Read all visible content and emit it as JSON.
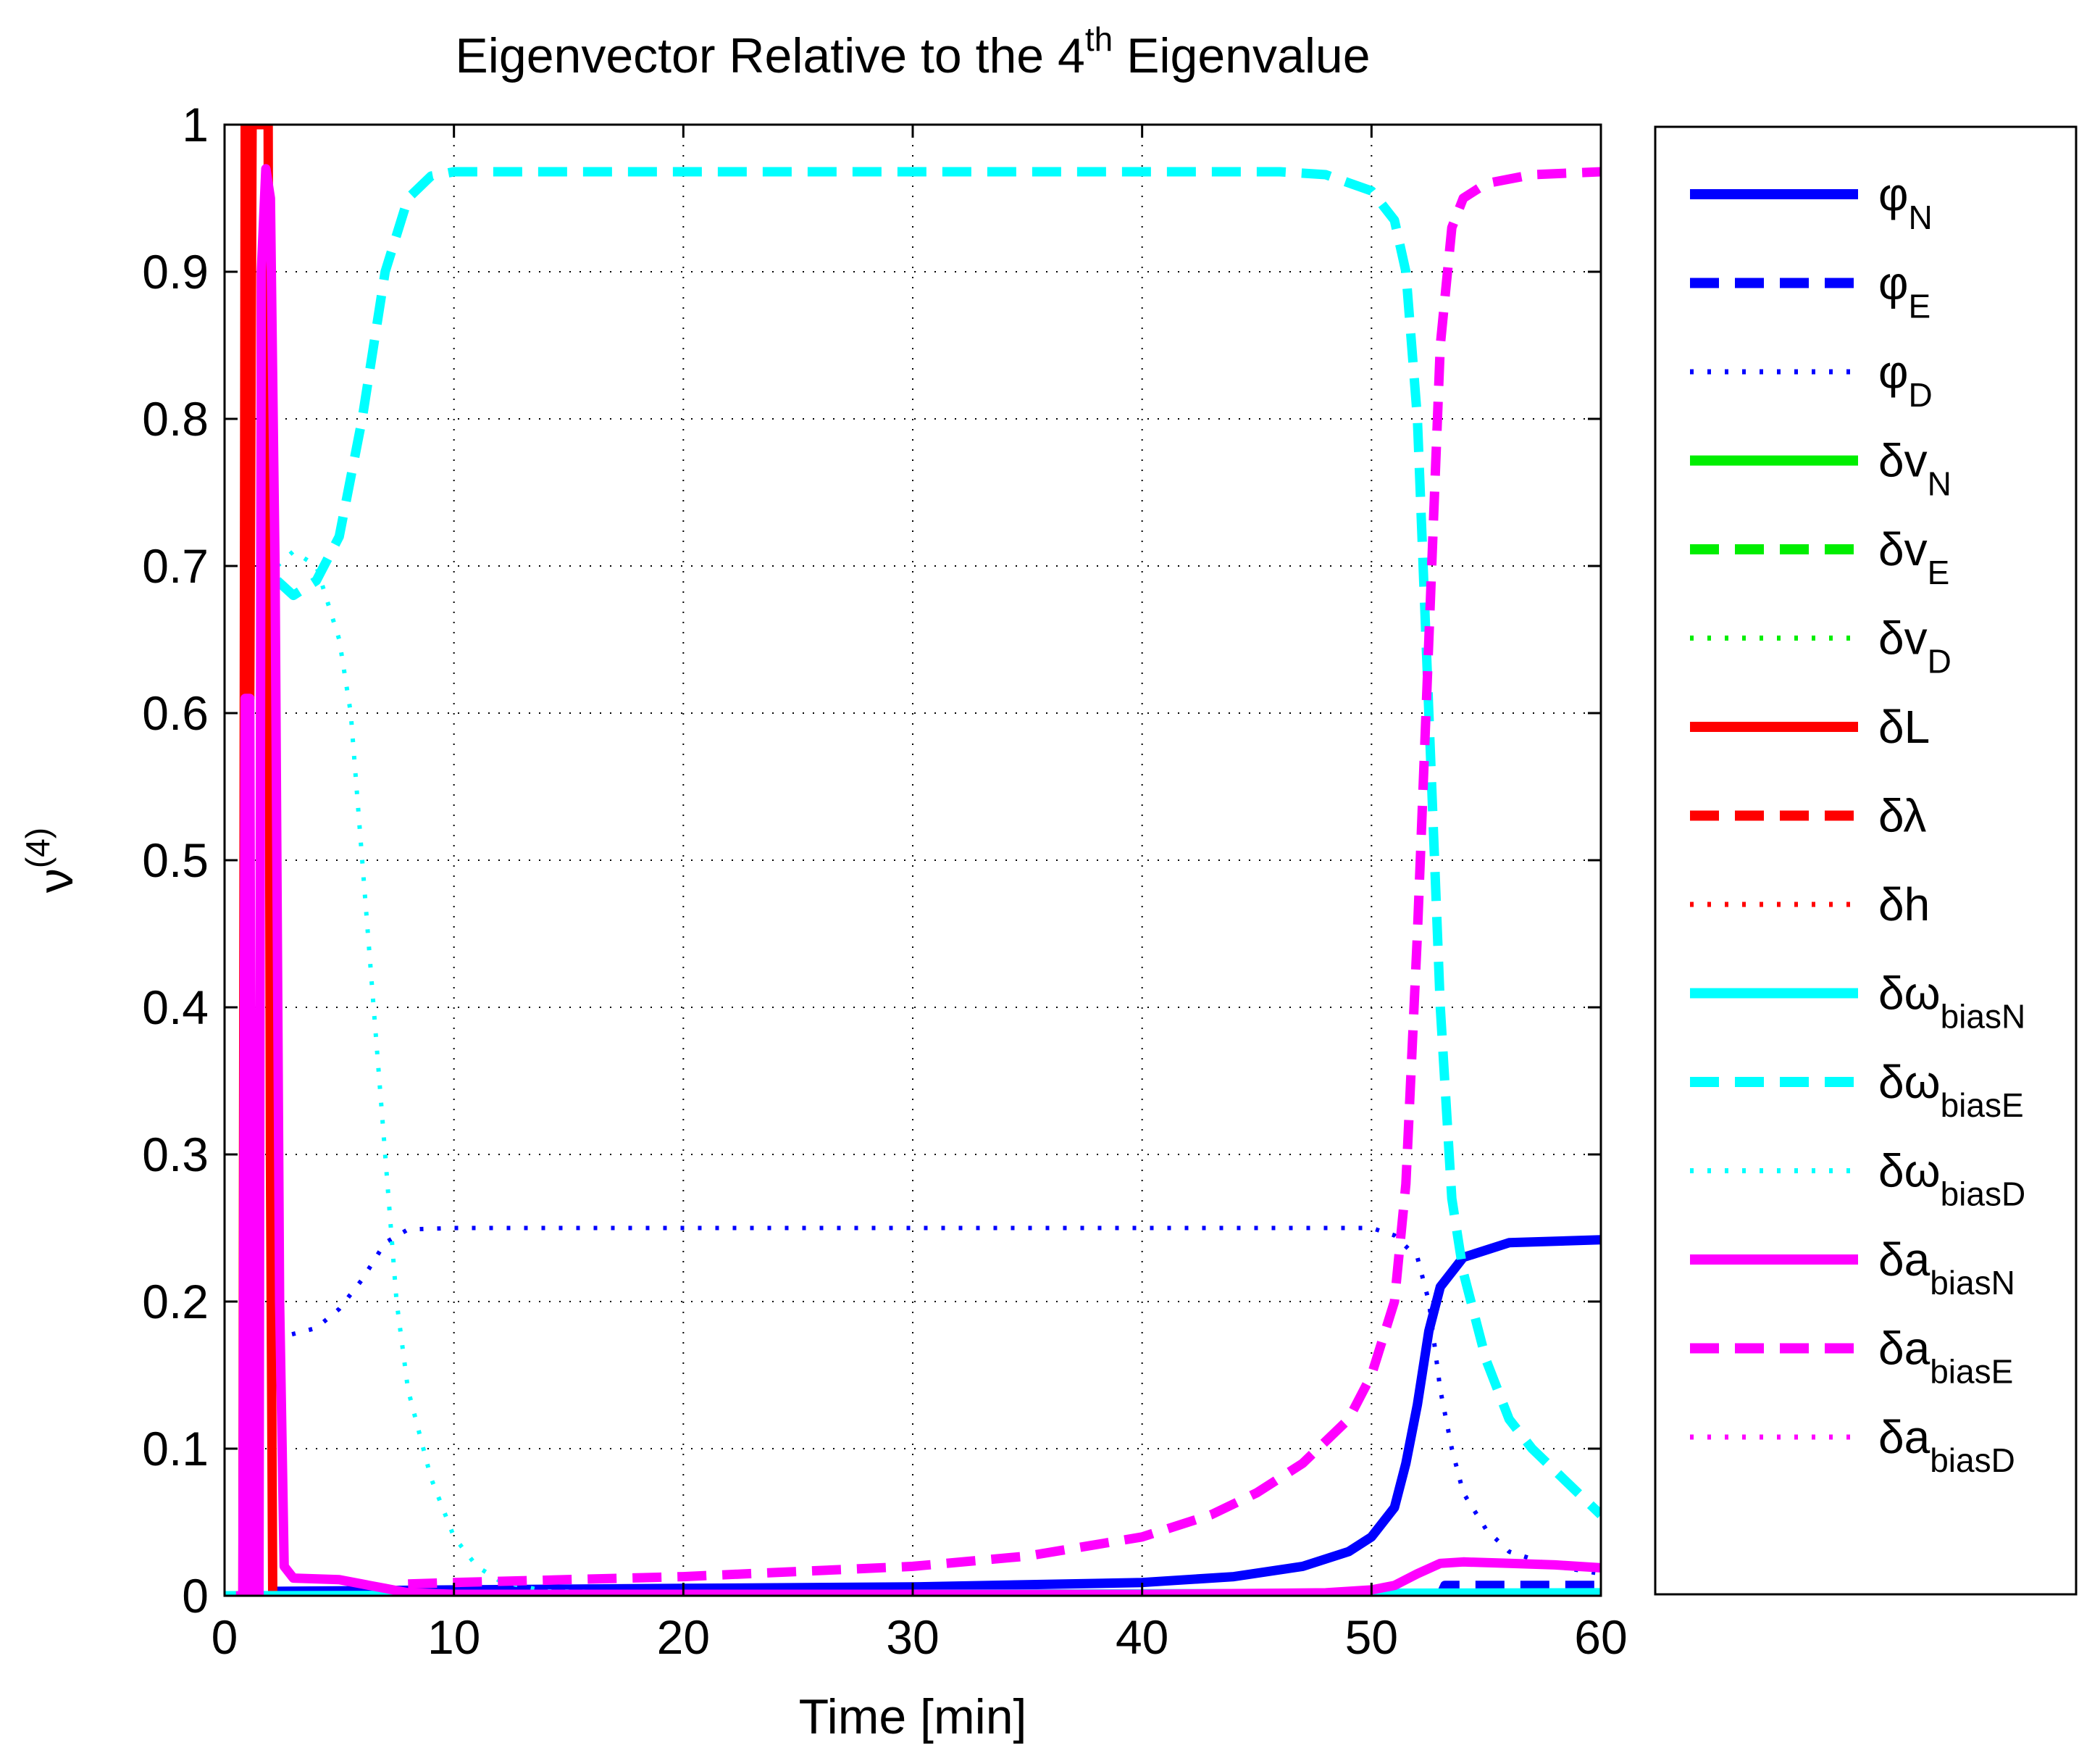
{
  "chart_data": {
    "type": "line",
    "title": {
      "main": "Eigenvector Relative to the 4",
      "sup": "th",
      "tail": " Eigenvalue"
    },
    "xlabel": "Time [min]",
    "ylabel": {
      "base": "ν",
      "sup": "(4)"
    },
    "xlim": [
      0,
      60
    ],
    "ylim": [
      0,
      1
    ],
    "xticks": [
      0,
      10,
      20,
      30,
      40,
      50,
      60
    ],
    "yticks": [
      0,
      0.1,
      0.2,
      0.3,
      0.4,
      0.5,
      0.6,
      0.7,
      0.8,
      0.9,
      1
    ],
    "xtick_labels": [
      "0",
      "10",
      "20",
      "30",
      "40",
      "50",
      "60"
    ],
    "ytick_labels": [
      "0",
      "0.1",
      "0.2",
      "0.3",
      "0.4",
      "0.5",
      "0.6",
      "0.7",
      "0.8",
      "0.9",
      "1"
    ],
    "grid": true,
    "legend_position": "outside-right",
    "series": [
      {
        "name": "φN",
        "label": {
          "base": "φ",
          "sub": "N"
        },
        "color": "#0000ff",
        "style": "solid",
        "points": [
          [
            0,
            0
          ],
          [
            2,
            0
          ],
          [
            2.2,
            0.003
          ],
          [
            10,
            0.004
          ],
          [
            20,
            0.005
          ],
          [
            30,
            0.006
          ],
          [
            40,
            0.009
          ],
          [
            44,
            0.013
          ],
          [
            47,
            0.02
          ],
          [
            49,
            0.03
          ],
          [
            50,
            0.04
          ],
          [
            51,
            0.06
          ],
          [
            51.5,
            0.09
          ],
          [
            52,
            0.13
          ],
          [
            52.5,
            0.18
          ],
          [
            53,
            0.21
          ],
          [
            54,
            0.23
          ],
          [
            56,
            0.24
          ],
          [
            60,
            0.242
          ]
        ]
      },
      {
        "name": "φE",
        "label": {
          "base": "φ",
          "sub": "E"
        },
        "color": "#0000ff",
        "style": "dashed",
        "points": [
          [
            0,
            0
          ],
          [
            53,
            0
          ],
          [
            53.2,
            0.007
          ],
          [
            60,
            0.007
          ]
        ]
      },
      {
        "name": "φD",
        "label": {
          "base": "φ",
          "sub": "D"
        },
        "color": "#0000ff",
        "style": "dotted",
        "points": [
          [
            2.2,
            0.175
          ],
          [
            3,
            0.178
          ],
          [
            4,
            0.182
          ],
          [
            5,
            0.195
          ],
          [
            6,
            0.215
          ],
          [
            7,
            0.24
          ],
          [
            8,
            0.249
          ],
          [
            10,
            0.25
          ],
          [
            30,
            0.25
          ],
          [
            48,
            0.25
          ],
          [
            50,
            0.25
          ],
          [
            51,
            0.245
          ],
          [
            52,
            0.23
          ],
          [
            52.5,
            0.2
          ],
          [
            53,
            0.14
          ],
          [
            53.5,
            0.1
          ],
          [
            54,
            0.07
          ],
          [
            55,
            0.045
          ],
          [
            56,
            0.03
          ],
          [
            58,
            0.02
          ],
          [
            60,
            0.015
          ]
        ]
      },
      {
        "name": "δvN",
        "label": {
          "base": "δv",
          "sub": "N"
        },
        "color": "#00ee00",
        "style": "solid",
        "points": []
      },
      {
        "name": "δvE",
        "label": {
          "base": "δv",
          "sub": "E"
        },
        "color": "#00ee00",
        "style": "dashed",
        "points": []
      },
      {
        "name": "δvD",
        "label": {
          "base": "δv",
          "sub": "D"
        },
        "color": "#00ee00",
        "style": "dotted",
        "points": []
      },
      {
        "name": "δL",
        "label": {
          "base": "δL",
          "sub": ""
        },
        "color": "#ff0000",
        "style": "solid",
        "points": [
          [
            0.8,
            0
          ],
          [
            0.9,
            1
          ],
          [
            1.05,
            1
          ],
          [
            1.1,
            0.61
          ],
          [
            1.2,
            1
          ],
          [
            1.9,
            1
          ],
          [
            2,
            0.3
          ],
          [
            2.1,
            0
          ]
        ]
      },
      {
        "name": "δλ",
        "label": {
          "base": "δλ",
          "sub": ""
        },
        "color": "#ff0000",
        "style": "dashed",
        "points": []
      },
      {
        "name": "δh",
        "label": {
          "base": "δh",
          "sub": ""
        },
        "color": "#ff0000",
        "style": "dotted",
        "points": []
      },
      {
        "name": "δωbiasN",
        "label": {
          "base": "δω",
          "sub": "biasN"
        },
        "color": "#00ffff",
        "style": "solid",
        "points": [
          [
            0,
            0
          ],
          [
            60,
            0.002
          ]
        ]
      },
      {
        "name": "δωbiasE",
        "label": {
          "base": "δω",
          "sub": "biasE"
        },
        "color": "#00ffff",
        "style": "dashed",
        "points": [
          [
            2.3,
            0.69
          ],
          [
            3,
            0.68
          ],
          [
            4,
            0.69
          ],
          [
            5,
            0.72
          ],
          [
            6,
            0.8
          ],
          [
            7,
            0.9
          ],
          [
            8,
            0.95
          ],
          [
            9,
            0.965
          ],
          [
            10,
            0.968
          ],
          [
            20,
            0.968
          ],
          [
            30,
            0.968
          ],
          [
            40,
            0.968
          ],
          [
            46,
            0.968
          ],
          [
            48,
            0.966
          ],
          [
            50,
            0.955
          ],
          [
            51,
            0.935
          ],
          [
            51.5,
            0.9
          ],
          [
            52,
            0.8
          ],
          [
            52.5,
            0.6
          ],
          [
            53,
            0.4
          ],
          [
            53.5,
            0.27
          ],
          [
            54,
            0.22
          ],
          [
            55,
            0.16
          ],
          [
            56,
            0.12
          ],
          [
            57,
            0.1
          ],
          [
            58,
            0.085
          ],
          [
            59,
            0.07
          ],
          [
            60,
            0.055
          ]
        ]
      },
      {
        "name": "δωbiasD",
        "label": {
          "base": "δω",
          "sub": "biasD"
        },
        "color": "#00ffff",
        "style": "dotted",
        "points": [
          [
            2.3,
            0.7
          ],
          [
            3,
            0.71
          ],
          [
            4,
            0.7
          ],
          [
            5,
            0.65
          ],
          [
            5.5,
            0.6
          ],
          [
            6,
            0.5
          ],
          [
            6.5,
            0.4
          ],
          [
            7,
            0.3
          ],
          [
            7.5,
            0.2
          ],
          [
            8,
            0.14
          ],
          [
            9,
            0.08
          ],
          [
            10,
            0.04
          ],
          [
            11,
            0.02
          ],
          [
            12,
            0.01
          ],
          [
            14,
            0.003
          ],
          [
            20,
            0.002
          ],
          [
            60,
            0.002
          ]
        ]
      },
      {
        "name": "δabiasN",
        "label": {
          "base": "δa",
          "sub": "biasN"
        },
        "color": "#ff00ff",
        "style": "solid",
        "points": [
          [
            0.5,
            0
          ],
          [
            0.8,
            0
          ],
          [
            0.9,
            0.61
          ],
          [
            1.1,
            0.61
          ],
          [
            1.2,
            0
          ],
          [
            1.5,
            0
          ],
          [
            1.6,
            0.9
          ],
          [
            1.8,
            0.97
          ],
          [
            2,
            0.95
          ],
          [
            2.2,
            0.7
          ],
          [
            2.4,
            0.2
          ],
          [
            2.6,
            0.02
          ],
          [
            3,
            0.012
          ],
          [
            5,
            0.011
          ],
          [
            6,
            0.008
          ],
          [
            7,
            0.005
          ],
          [
            8,
            0.002
          ],
          [
            10,
            0.001
          ],
          [
            40,
            0.001
          ],
          [
            48,
            0.002
          ],
          [
            50,
            0.004
          ],
          [
            51,
            0.007
          ],
          [
            52,
            0.015
          ],
          [
            53,
            0.022
          ],
          [
            54,
            0.023
          ],
          [
            56,
            0.022
          ],
          [
            58,
            0.021
          ],
          [
            60,
            0.019
          ]
        ]
      },
      {
        "name": "δabiasE",
        "label": {
          "base": "δa",
          "sub": "biasE"
        },
        "color": "#ff00ff",
        "style": "dashed",
        "points": [
          [
            8,
            0.008
          ],
          [
            10,
            0.009
          ],
          [
            20,
            0.013
          ],
          [
            30,
            0.02
          ],
          [
            35,
            0.027
          ],
          [
            40,
            0.04
          ],
          [
            43,
            0.055
          ],
          [
            45,
            0.07
          ],
          [
            47,
            0.09
          ],
          [
            49,
            0.12
          ],
          [
            50,
            0.15
          ],
          [
            51,
            0.2
          ],
          [
            51.5,
            0.28
          ],
          [
            52,
            0.45
          ],
          [
            52.5,
            0.65
          ],
          [
            53,
            0.85
          ],
          [
            53.5,
            0.93
          ],
          [
            54,
            0.95
          ],
          [
            55,
            0.96
          ],
          [
            57,
            0.966
          ],
          [
            60,
            0.968
          ]
        ]
      },
      {
        "name": "δabiasD",
        "label": {
          "base": "δa",
          "sub": "biasD"
        },
        "color": "#ff00ff",
        "style": "dotted",
        "points": []
      }
    ]
  }
}
